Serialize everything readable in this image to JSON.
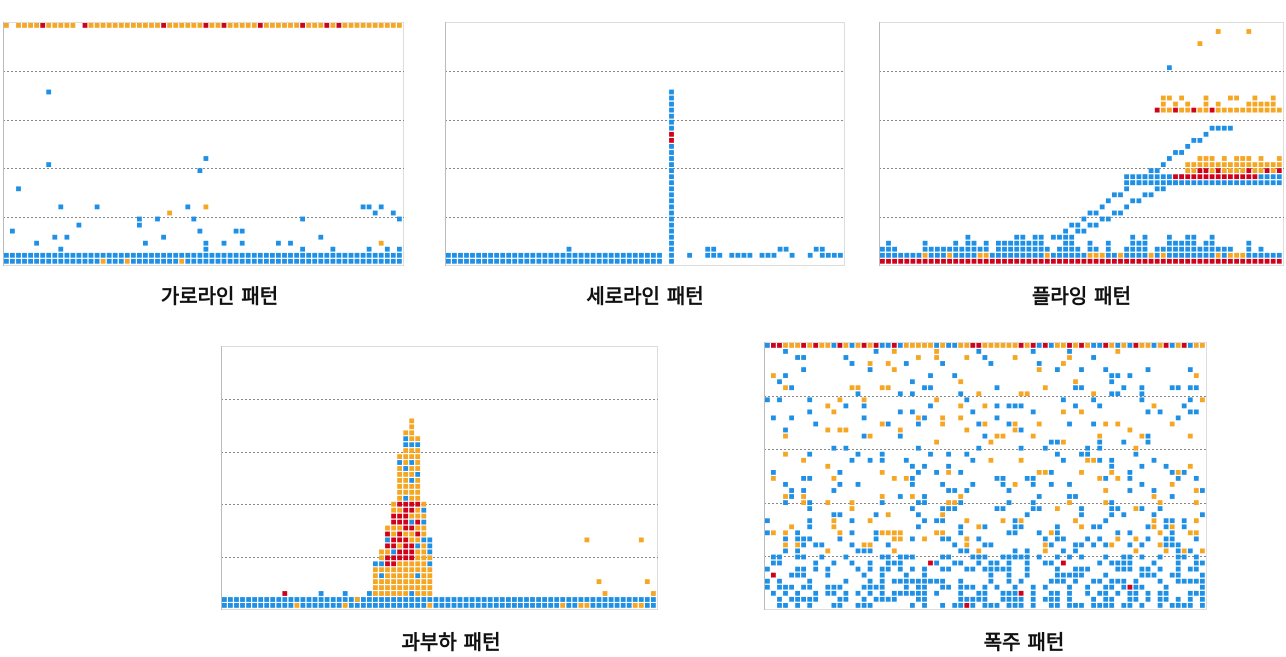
{
  "colors": {
    "normal": "#1e90e6",
    "warning": "#f5a623",
    "critical": "#d0021b"
  },
  "chart_data": [
    {
      "type": "scatter",
      "pattern": "horizontal-line",
      "title": "가로라인 패턴",
      "xlabel": "",
      "ylabel": "",
      "cols": 66,
      "rows": 40,
      "grid": true,
      "points": []
    },
    {
      "type": "scatter",
      "pattern": "vertical-line",
      "title": "세로라인 패턴",
      "xlabel": "",
      "ylabel": "",
      "cols": 66,
      "rows": 40,
      "grid": true,
      "points": []
    },
    {
      "type": "scatter",
      "pattern": "flying",
      "title": "플라잉 패턴",
      "xlabel": "",
      "ylabel": "",
      "cols": 66,
      "rows": 40,
      "grid": true,
      "points": []
    },
    {
      "type": "scatter",
      "pattern": "overload",
      "title": "과부하 패턴",
      "xlabel": "",
      "ylabel": "",
      "cols": 72,
      "rows": 44,
      "grid": true,
      "points": []
    },
    {
      "type": "scatter",
      "pattern": "surge",
      "title": "폭주 패턴",
      "xlabel": "",
      "ylabel": "",
      "cols": 73,
      "rows": 44,
      "grid": true,
      "points": []
    }
  ]
}
